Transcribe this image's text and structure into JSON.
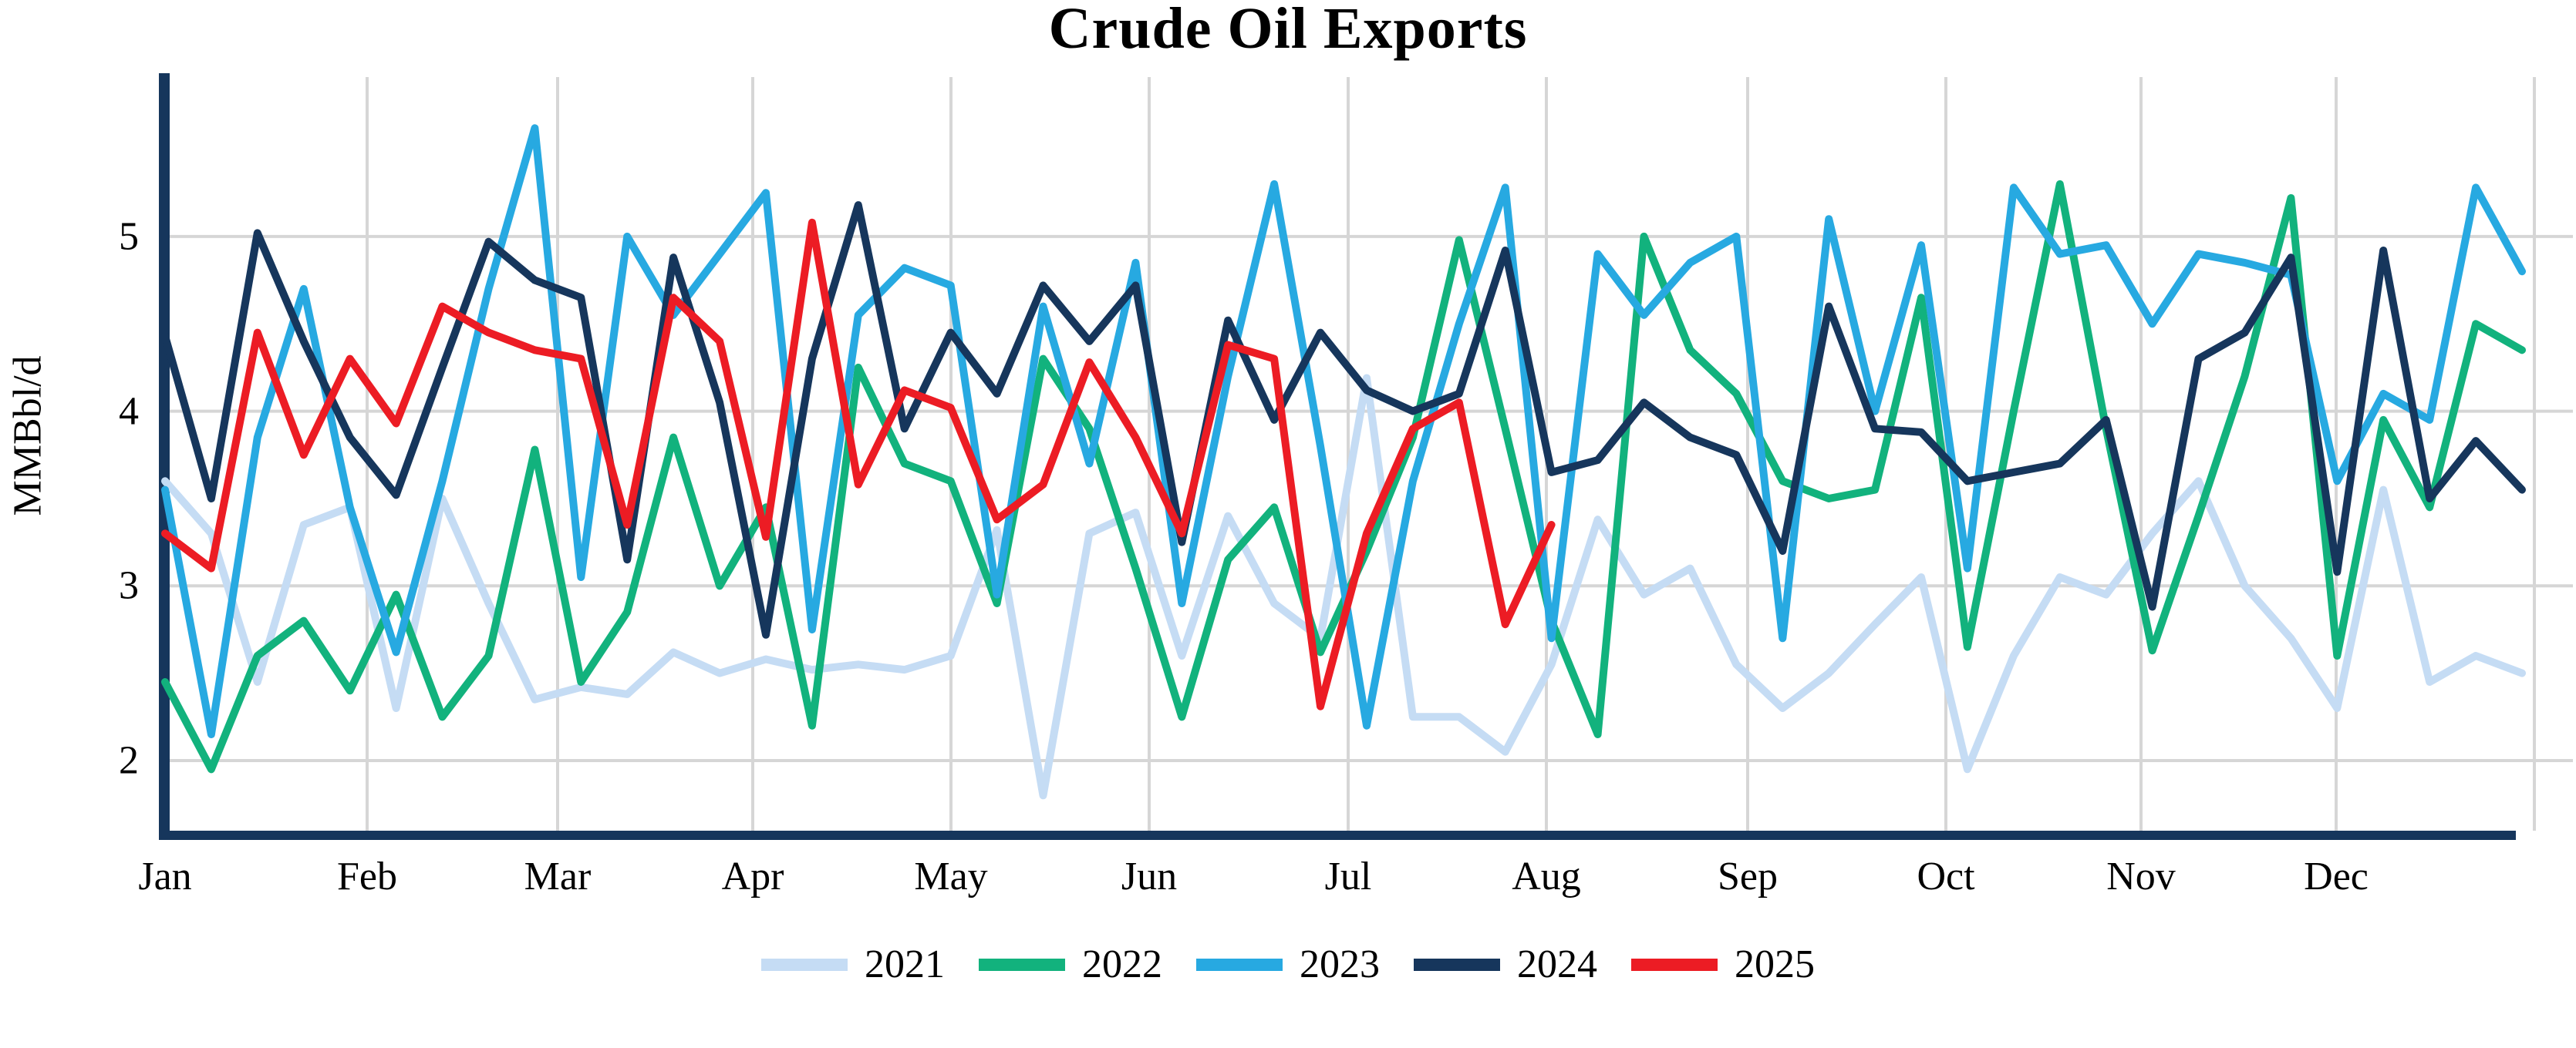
{
  "title": "Crude Oil Exports",
  "y_axis": {
    "label": "MMBbl/d",
    "ticks": [
      "5",
      "4",
      "3",
      "2"
    ]
  },
  "x_axis": {
    "months": [
      "Jan",
      "Feb",
      "Mar",
      "Apr",
      "May",
      "Jun",
      "Jul",
      "Aug",
      "Sep",
      "Oct",
      "Nov",
      "Dec"
    ]
  },
  "legend": {
    "items": [
      {
        "label": "2021",
        "color": "#c5dcf4"
      },
      {
        "label": "2022",
        "color": "#12b27d"
      },
      {
        "label": "2023",
        "color": "#27a9e1"
      },
      {
        "label": "2024",
        "color": "#16365c"
      },
      {
        "label": "2025",
        "color": "#ec1c24"
      }
    ]
  },
  "chart_data": {
    "type": "line",
    "title": "Crude Oil Exports",
    "xlabel": "",
    "ylabel": "MMBbl/d",
    "x_unit": "week-of-year (52 weekly points, Jan through Dec)",
    "month_tick_labels": [
      "Jan",
      "Feb",
      "Mar",
      "Apr",
      "May",
      "Jun",
      "Jul",
      "Aug",
      "Sep",
      "Oct",
      "Nov",
      "Dec"
    ],
    "ylim": [
      1.5,
      5.9
    ],
    "yticks": [
      2,
      3,
      4,
      5
    ],
    "grid": true,
    "legend_position": "bottom",
    "series": [
      {
        "name": "2021",
        "color": "#c5dcf4",
        "values": [
          3.6,
          3.3,
          2.45,
          3.35,
          3.45,
          2.3,
          3.5,
          2.9,
          2.35,
          2.42,
          2.38,
          2.62,
          2.5,
          2.58,
          2.52,
          2.55,
          2.52,
          2.6,
          3.32,
          1.8,
          3.3,
          3.42,
          2.6,
          3.4,
          2.9,
          2.7,
          4.19,
          2.25,
          2.25,
          2.05,
          2.55,
          3.38,
          2.95,
          3.1,
          2.55,
          2.3,
          2.5,
          2.78,
          3.05,
          1.95,
          2.6,
          3.05,
          2.95,
          3.3,
          3.6,
          3.0,
          2.7,
          2.3,
          3.55,
          2.45,
          2.6,
          2.5
        ]
      },
      {
        "name": "2022",
        "color": "#12b27d",
        "values": [
          2.45,
          1.95,
          2.6,
          2.8,
          2.4,
          2.95,
          2.25,
          2.6,
          3.78,
          2.45,
          2.85,
          3.85,
          3.0,
          3.45,
          2.2,
          4.25,
          3.7,
          3.6,
          2.9,
          4.3,
          3.9,
          3.1,
          2.25,
          3.15,
          3.45,
          2.62,
          3.2,
          3.85,
          4.98,
          3.9,
          2.8,
          2.15,
          5.0,
          4.35,
          4.1,
          3.6,
          3.5,
          3.55,
          4.65,
          2.65,
          4.0,
          5.3,
          3.9,
          2.63,
          3.4,
          4.2,
          5.22,
          2.6,
          3.95,
          3.45,
          4.5,
          4.35
        ]
      },
      {
        "name": "2023",
        "color": "#27a9e1",
        "values": [
          3.55,
          2.15,
          3.85,
          4.7,
          3.45,
          2.62,
          3.6,
          4.7,
          5.62,
          3.05,
          5.0,
          4.55,
          4.9,
          5.25,
          2.75,
          4.55,
          4.82,
          4.72,
          2.95,
          4.6,
          3.7,
          4.85,
          2.9,
          4.2,
          5.3,
          3.8,
          2.2,
          3.6,
          4.5,
          5.28,
          2.7,
          4.9,
          4.55,
          4.85,
          5.0,
          2.7,
          5.1,
          4.0,
          4.95,
          3.1,
          5.28,
          4.9,
          4.95,
          4.5,
          4.9,
          4.85,
          4.78,
          3.6,
          4.1,
          3.95,
          5.28,
          4.8
        ]
      },
      {
        "name": "2024",
        "color": "#16365c",
        "values": [
          4.43,
          3.5,
          5.02,
          4.4,
          3.85,
          3.52,
          4.25,
          4.97,
          4.75,
          4.65,
          3.15,
          4.88,
          4.05,
          2.72,
          4.3,
          5.18,
          3.9,
          4.45,
          4.1,
          4.72,
          4.4,
          4.72,
          3.25,
          4.52,
          3.95,
          4.45,
          4.12,
          4.0,
          4.1,
          4.92,
          3.65,
          3.72,
          4.05,
          3.85,
          3.75,
          3.2,
          4.6,
          3.9,
          3.88,
          3.6,
          3.65,
          3.7,
          3.95,
          2.88,
          4.3,
          4.45,
          4.88,
          3.08,
          4.92,
          3.5,
          3.83,
          3.55
        ]
      },
      {
        "name": "2025",
        "color": "#ec1c24",
        "values": [
          3.3,
          3.1,
          4.45,
          3.75,
          4.3,
          3.93,
          4.6,
          4.45,
          4.35,
          4.3,
          3.35,
          4.65,
          4.4,
          3.28,
          5.08,
          3.58,
          4.12,
          4.02,
          3.38,
          3.58,
          4.28,
          3.85,
          3.3,
          4.38,
          4.3,
          2.31,
          3.3,
          3.9,
          4.05,
          2.78,
          3.35
        ]
      }
    ]
  }
}
